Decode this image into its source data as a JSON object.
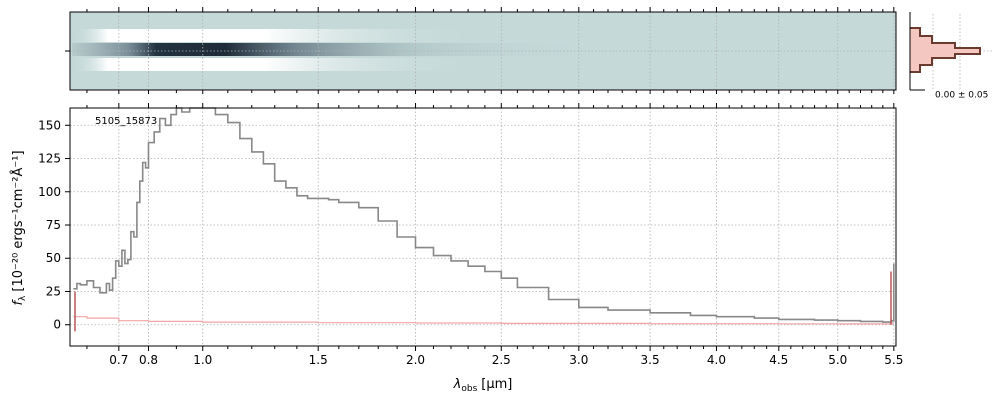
{
  "chart_data": {
    "type": "line",
    "object_label": "5105_15873",
    "xlabel_main": "λ",
    "xlabel_sub": "obs",
    "xlabel_unit": "[μm]",
    "ylabel_main": "f",
    "ylabel_sub": "λ",
    "ylabel_unit": "[10⁻²⁰ ergs⁻¹cm⁻²Å⁻¹]",
    "x_tick_labels": [
      "0.7",
      "0.8",
      "1.0",
      "1.5",
      "2.0",
      "2.5",
      "3.0",
      "3.5",
      "4.0",
      "4.5",
      "5.0",
      "5.5"
    ],
    "x_ticks": [
      0.7,
      0.8,
      1.0,
      1.5,
      2.0,
      2.5,
      3.0,
      3.5,
      4.0,
      4.5,
      5.0,
      5.5
    ],
    "y_tick_labels": [
      "0",
      "25",
      "50",
      "75",
      "100",
      "125",
      "150"
    ],
    "y_ticks": [
      0,
      25,
      50,
      75,
      100,
      125,
      150
    ],
    "ylim": [
      -16,
      163
    ],
    "xlim": [
      0.55,
      5.52
    ],
    "x_scale": "sqrt-like (prism)",
    "grid": true,
    "series": [
      {
        "color": "#888888",
        "x": [
          0.56,
          0.57,
          0.58,
          0.6,
          0.62,
          0.64,
          0.66,
          0.67,
          0.68,
          0.69,
          0.7,
          0.71,
          0.72,
          0.73,
          0.74,
          0.75,
          0.76,
          0.77,
          0.78,
          0.79,
          0.8,
          0.82,
          0.84,
          0.86,
          0.88,
          0.9,
          0.92,
          0.95,
          1.0,
          1.05,
          1.1,
          1.15,
          1.2,
          1.25,
          1.3,
          1.35,
          1.4,
          1.45,
          1.5,
          1.55,
          1.6,
          1.7,
          1.8,
          1.9,
          2.0,
          2.1,
          2.2,
          2.3,
          2.4,
          2.5,
          2.6,
          2.8,
          3.0,
          3.2,
          3.5,
          3.8,
          4.0,
          4.3,
          4.5,
          4.8,
          5.0,
          5.2,
          5.4,
          5.48,
          5.5
        ],
        "y": [
          27,
          31,
          30,
          33,
          28,
          24,
          31,
          26,
          35,
          48,
          44,
          56,
          46,
          49,
          70,
          66,
          92,
          108,
          122,
          118,
          137,
          145,
          155,
          150,
          158,
          163,
          160,
          163,
          163,
          158,
          152,
          140,
          130,
          121,
          108,
          103,
          97,
          95,
          95,
          94,
          92,
          88,
          78,
          66,
          58,
          52,
          48,
          44,
          40,
          35,
          28,
          19,
          13,
          11,
          9,
          7,
          6,
          5,
          4,
          3.5,
          3,
          2.5,
          2,
          3,
          46
        ]
      },
      {
        "color": "#f2a6a6",
        "x": [
          0.56,
          0.6,
          0.7,
          0.8,
          1.0,
          1.5,
          2.0,
          2.5,
          3.0,
          3.5,
          4.0,
          4.5,
          5.0,
          5.5
        ],
        "y": [
          6,
          5,
          3,
          2.5,
          2,
          1.5,
          1.3,
          1,
          1,
          0.8,
          0.8,
          0.7,
          0.6,
          0.6
        ]
      }
    ],
    "inset_label": "0.00 ± 0.05",
    "colors": {
      "spectrum": "#888888",
      "error": "#f2a6a6",
      "twod_background": "#c4d9d8",
      "profile_line": "#6b3b2f",
      "profile_fill": "#f4c7c0"
    }
  }
}
